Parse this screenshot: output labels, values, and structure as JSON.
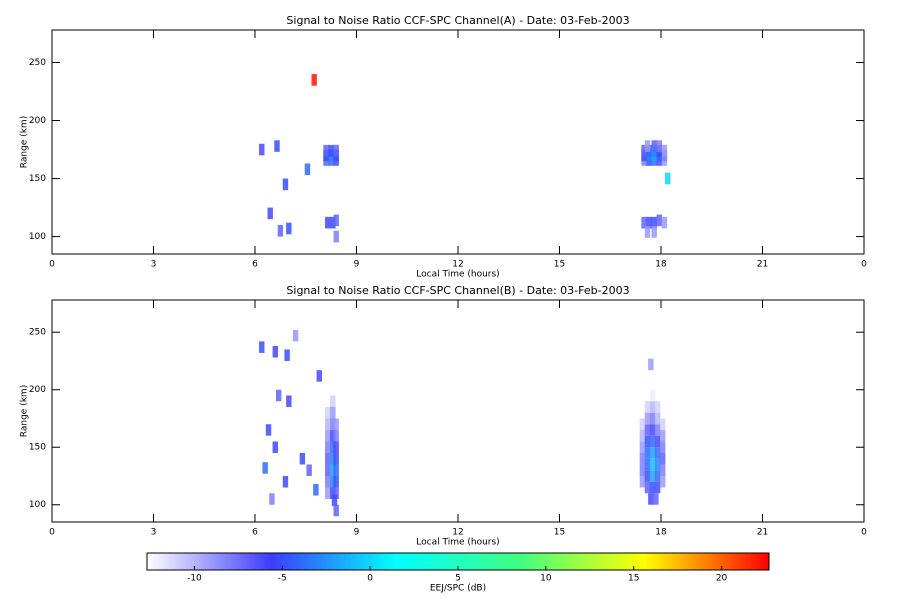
{
  "chart_data": [
    {
      "type": "heatmap",
      "title": "Signal to Noise Ratio CCF-SPC Channel(A) - Date: 03-Feb-2003",
      "xlabel": "Local Time (hours)",
      "ylabel": "Range (km)",
      "xlim": [
        0,
        24
      ],
      "xticks": [
        0,
        3,
        6,
        9,
        12,
        15,
        18,
        21,
        {
          "value": 24,
          "label": "0"
        }
      ],
      "ylim": [
        85,
        278
      ],
      "yticks": [
        100,
        150,
        200,
        250
      ],
      "x": [
        8.1,
        8.25,
        8.4,
        8.1,
        8.25,
        8.4,
        8.1,
        8.25,
        8.4,
        8.15,
        8.3,
        8.4,
        8.4,
        17.5,
        17.65,
        17.8,
        17.95,
        18.1,
        17.5,
        17.65,
        17.8,
        17.95,
        18.1,
        17.5,
        17.65,
        17.8,
        17.95,
        18.1,
        17.6,
        17.8,
        17.95,
        17.5,
        17.65,
        17.8,
        17.95,
        18.1,
        17.6,
        17.8,
        6.2,
        6.65,
        7.75,
        7.0,
        6.75,
        6.45,
        7.55,
        6.9,
        18.2
      ],
      "y": [
        166,
        166,
        166,
        170,
        170,
        170,
        174,
        174,
        174,
        112,
        112,
        114,
        100,
        166,
        166,
        166,
        166,
        166,
        170,
        170,
        170,
        170,
        170,
        174,
        174,
        174,
        174,
        174,
        178,
        178,
        178,
        112,
        112,
        112,
        114,
        112,
        104,
        104,
        175,
        178,
        235,
        107,
        105,
        120,
        158,
        145,
        150
      ],
      "values": [
        -7,
        -4,
        -6,
        -5,
        -3,
        -5,
        -7,
        -5,
        -7,
        -6,
        -5,
        -7,
        -8,
        -8,
        -5,
        -4,
        -6,
        -9,
        -6,
        -3,
        -2,
        -4,
        -8,
        -7,
        -4,
        -3,
        -5,
        -9,
        -9,
        -7,
        -8,
        -7,
        -5,
        -5,
        -7,
        -9,
        -9,
        -9,
        -6,
        -5,
        22,
        -5,
        -7,
        -6,
        -4,
        -5,
        0
      ]
    },
    {
      "type": "heatmap",
      "title": "Signal to Noise Ratio CCF-SPC Channel(B) - Date: 03-Feb-2003",
      "xlabel": "Local Time (hours)",
      "ylabel": "Range (km)",
      "xlim": [
        0,
        24
      ],
      "xticks": [
        0,
        3,
        6,
        9,
        12,
        15,
        18,
        21,
        {
          "value": 24,
          "label": "0"
        }
      ],
      "ylim": [
        85,
        278
      ],
      "yticks": [
        100,
        150,
        200,
        250
      ],
      "x": [
        8.15,
        8.15,
        8.15,
        8.15,
        8.15,
        8.15,
        8.15,
        8.15,
        8.3,
        8.3,
        8.3,
        8.3,
        8.3,
        8.3,
        8.3,
        8.3,
        8.3,
        8.4,
        8.4,
        8.4,
        8.4,
        8.4,
        8.4,
        8.4,
        8.35,
        8.4,
        17.45,
        17.45,
        17.45,
        17.45,
        17.45,
        17.45,
        17.6,
        17.6,
        17.6,
        17.6,
        17.6,
        17.6,
        17.6,
        17.6,
        17.75,
        17.75,
        17.75,
        17.75,
        17.75,
        17.75,
        17.75,
        17.75,
        17.75,
        17.9,
        17.9,
        17.9,
        17.9,
        17.9,
        17.9,
        17.9,
        17.9,
        18.05,
        18.05,
        18.05,
        18.05,
        18.05,
        18.05,
        17.7,
        17.85,
        6.2,
        6.6,
        6.95,
        7.2,
        6.7,
        7.0,
        7.9,
        6.4,
        6.6,
        6.3,
        7.4,
        7.6,
        6.9,
        7.8,
        6.5,
        17.7
      ],
      "y": [
        110,
        120,
        130,
        140,
        150,
        160,
        170,
        180,
        110,
        120,
        130,
        140,
        150,
        160,
        170,
        180,
        190,
        110,
        120,
        130,
        140,
        150,
        160,
        170,
        104,
        95,
        120,
        130,
        140,
        150,
        160,
        170,
        115,
        125,
        135,
        145,
        155,
        165,
        175,
        185,
        115,
        125,
        135,
        145,
        155,
        165,
        175,
        185,
        195,
        115,
        125,
        135,
        145,
        155,
        165,
        175,
        185,
        120,
        130,
        140,
        150,
        160,
        170,
        105,
        105,
        237,
        233,
        230,
        247,
        195,
        190,
        212,
        165,
        150,
        132,
        140,
        130,
        120,
        113,
        105,
        222
      ],
      "values": [
        -9,
        -8,
        -7,
        -7,
        -8,
        -9,
        -10,
        -11,
        -5,
        -3,
        -2,
        -3,
        -4,
        -6,
        -8,
        -9,
        -11,
        -7,
        -5,
        -4,
        -5,
        -6,
        -8,
        -9,
        -6,
        -7,
        -9,
        -8,
        -8,
        -9,
        -10,
        -11,
        -7,
        -5,
        -4,
        -4,
        -5,
        -7,
        -9,
        -11,
        -5,
        -2,
        -1,
        -2,
        -4,
        -6,
        -8,
        -10,
        -12,
        -6,
        -4,
        -3,
        -4,
        -6,
        -8,
        -10,
        -11,
        -9,
        -8,
        -7,
        -8,
        -9,
        -11,
        -6,
        -7,
        -5,
        -6,
        -5,
        -9,
        -7,
        -6,
        -6,
        -5,
        -6,
        -4,
        -5,
        -7,
        -6,
        -4,
        -8,
        -9
      ]
    }
  ],
  "colorbar": {
    "label": "EEJ/SPC (dB)",
    "clim": [
      -12.7,
      22.7
    ],
    "ticks": [
      -10,
      -5,
      0,
      5,
      10,
      15,
      20
    ],
    "colormap": [
      "#ffffff",
      "#3c3cff",
      "#00ffff",
      "#40ff80",
      "#ffff00",
      "#ff0000"
    ]
  }
}
